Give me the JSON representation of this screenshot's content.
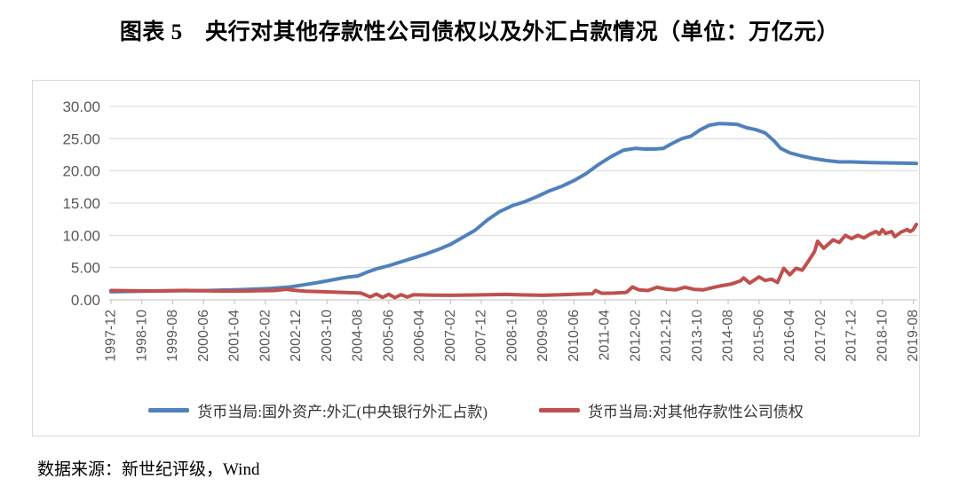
{
  "title": "图表 5　央行对其他存款性公司债权以及外汇占款情况（单位：万亿元）",
  "source_note": "数据来源：新世纪评级，Wind",
  "chart_data": {
    "type": "line",
    "title": "央行对其他存款性公司债权以及外汇占款情况",
    "unit": "万亿元",
    "ylim": [
      0,
      30
    ],
    "y_ticks": [
      "0.00",
      "5.00",
      "10.00",
      "15.00",
      "20.00",
      "25.00",
      "30.00"
    ],
    "y_tick_step": 5,
    "x_tick_labels": [
      "1997-12",
      "1998-10",
      "1999-08",
      "2000-06",
      "2001-04",
      "2002-02",
      "2002-12",
      "2003-10",
      "2004-08",
      "2005-06",
      "2006-04",
      "2007-02",
      "2007-12",
      "2008-10",
      "2009-08",
      "2010-06",
      "2011-04",
      "2012-02",
      "2012-12",
      "2013-10",
      "2014-08",
      "2015-06",
      "2016-04",
      "2017-02",
      "2017-12",
      "2018-10",
      "2019-08"
    ],
    "x_start": "1997-12",
    "x_end": "2019-09",
    "grid": "horizontal",
    "legend_position": "bottom",
    "colors": {
      "grid": "#d9d9d9",
      "axis": "#bfbfbf",
      "tick_label": "#595959",
      "panel_border": "#d9d9d9",
      "series_forex": "#4f81bd",
      "series_claims": "#c0504d"
    },
    "series": [
      {
        "name": "货币当局:国外资产:外汇(中央银行外汇占款)",
        "color": "#4f81bd",
        "points": [
          [
            "1997-12",
            1.25
          ],
          [
            "1998-04",
            1.3
          ],
          [
            "1998-10",
            1.35
          ],
          [
            "1999-04",
            1.38
          ],
          [
            "1999-10",
            1.4
          ],
          [
            "2000-04",
            1.42
          ],
          [
            "2000-10",
            1.48
          ],
          [
            "2001-04",
            1.55
          ],
          [
            "2001-10",
            1.65
          ],
          [
            "2002-04",
            1.78
          ],
          [
            "2002-10",
            2.0
          ],
          [
            "2003-02",
            2.3
          ],
          [
            "2003-06",
            2.6
          ],
          [
            "2003-10",
            2.95
          ],
          [
            "2004-02",
            3.3
          ],
          [
            "2004-05",
            3.55
          ],
          [
            "2004-08",
            3.7
          ],
          [
            "2004-11",
            4.3
          ],
          [
            "2005-02",
            4.8
          ],
          [
            "2005-06",
            5.3
          ],
          [
            "2005-10",
            5.9
          ],
          [
            "2006-02",
            6.5
          ],
          [
            "2006-06",
            7.1
          ],
          [
            "2006-10",
            7.8
          ],
          [
            "2007-02",
            8.6
          ],
          [
            "2007-06",
            9.7
          ],
          [
            "2007-10",
            10.8
          ],
          [
            "2008-02",
            12.4
          ],
          [
            "2008-06",
            13.7
          ],
          [
            "2008-10",
            14.6
          ],
          [
            "2009-02",
            15.2
          ],
          [
            "2009-06",
            16.0
          ],
          [
            "2009-10",
            16.9
          ],
          [
            "2010-02",
            17.6
          ],
          [
            "2010-06",
            18.5
          ],
          [
            "2010-10",
            19.6
          ],
          [
            "2011-02",
            21.0
          ],
          [
            "2011-06",
            22.2
          ],
          [
            "2011-10",
            23.2
          ],
          [
            "2012-02",
            23.5
          ],
          [
            "2012-05",
            23.4
          ],
          [
            "2012-08",
            23.4
          ],
          [
            "2012-11",
            23.5
          ],
          [
            "2013-02",
            24.3
          ],
          [
            "2013-05",
            25.0
          ],
          [
            "2013-08",
            25.4
          ],
          [
            "2013-11",
            26.4
          ],
          [
            "2014-02",
            27.1
          ],
          [
            "2014-05",
            27.35
          ],
          [
            "2014-08",
            27.3
          ],
          [
            "2014-11",
            27.2
          ],
          [
            "2015-02",
            26.7
          ],
          [
            "2015-05",
            26.4
          ],
          [
            "2015-08",
            25.9
          ],
          [
            "2015-11",
            24.6
          ],
          [
            "2016-01",
            23.5
          ],
          [
            "2016-04",
            22.8
          ],
          [
            "2016-08",
            22.3
          ],
          [
            "2016-12",
            21.9
          ],
          [
            "2017-04",
            21.6
          ],
          [
            "2017-08",
            21.4
          ],
          [
            "2017-12",
            21.4
          ],
          [
            "2018-06",
            21.3
          ],
          [
            "2018-12",
            21.25
          ],
          [
            "2019-05",
            21.2
          ],
          [
            "2019-09",
            21.15
          ]
        ]
      },
      {
        "name": "货币当局:对其他存款性公司债权",
        "color": "#c0504d",
        "points": [
          [
            "1997-12",
            1.44
          ],
          [
            "1998-06",
            1.4
          ],
          [
            "1998-12",
            1.37
          ],
          [
            "1999-06",
            1.42
          ],
          [
            "1999-12",
            1.46
          ],
          [
            "2000-06",
            1.4
          ],
          [
            "2000-12",
            1.36
          ],
          [
            "2001-06",
            1.36
          ],
          [
            "2001-12",
            1.4
          ],
          [
            "2002-05",
            1.45
          ],
          [
            "2002-09",
            1.65
          ],
          [
            "2002-11",
            1.5
          ],
          [
            "2003-03",
            1.35
          ],
          [
            "2003-09",
            1.25
          ],
          [
            "2004-03",
            1.15
          ],
          [
            "2004-09",
            1.05
          ],
          [
            "2004-12",
            0.45
          ],
          [
            "2005-02",
            0.9
          ],
          [
            "2005-04",
            0.38
          ],
          [
            "2005-06",
            0.85
          ],
          [
            "2005-08",
            0.35
          ],
          [
            "2005-10",
            0.8
          ],
          [
            "2005-12",
            0.42
          ],
          [
            "2006-02",
            0.78
          ],
          [
            "2006-08",
            0.72
          ],
          [
            "2007-02",
            0.7
          ],
          [
            "2007-08",
            0.74
          ],
          [
            "2008-02",
            0.8
          ],
          [
            "2008-08",
            0.84
          ],
          [
            "2009-02",
            0.76
          ],
          [
            "2009-08",
            0.7
          ],
          [
            "2010-02",
            0.8
          ],
          [
            "2010-08",
            0.9
          ],
          [
            "2010-12",
            0.95
          ],
          [
            "2011-01",
            1.45
          ],
          [
            "2011-03",
            1.02
          ],
          [
            "2011-07",
            1.05
          ],
          [
            "2011-11",
            1.15
          ],
          [
            "2012-01",
            2.0
          ],
          [
            "2012-03",
            1.55
          ],
          [
            "2012-06",
            1.45
          ],
          [
            "2012-09",
            1.95
          ],
          [
            "2012-12",
            1.65
          ],
          [
            "2013-03",
            1.55
          ],
          [
            "2013-06",
            1.95
          ],
          [
            "2013-09",
            1.62
          ],
          [
            "2013-12",
            1.55
          ],
          [
            "2014-03",
            1.9
          ],
          [
            "2014-06",
            2.2
          ],
          [
            "2014-09",
            2.45
          ],
          [
            "2014-12",
            2.95
          ],
          [
            "2015-01",
            3.4
          ],
          [
            "2015-03",
            2.6
          ],
          [
            "2015-06",
            3.55
          ],
          [
            "2015-08",
            3.0
          ],
          [
            "2015-10",
            3.2
          ],
          [
            "2015-12",
            2.7
          ],
          [
            "2016-02",
            4.9
          ],
          [
            "2016-04",
            3.9
          ],
          [
            "2016-06",
            4.9
          ],
          [
            "2016-08",
            4.6
          ],
          [
            "2016-10",
            6.0
          ],
          [
            "2016-12",
            7.5
          ],
          [
            "2017-01",
            9.1
          ],
          [
            "2017-03",
            8.0
          ],
          [
            "2017-06",
            9.3
          ],
          [
            "2017-08",
            8.9
          ],
          [
            "2017-10",
            10.0
          ],
          [
            "2017-12",
            9.5
          ],
          [
            "2018-02",
            10.0
          ],
          [
            "2018-04",
            9.6
          ],
          [
            "2018-06",
            10.2
          ],
          [
            "2018-08",
            10.6
          ],
          [
            "2018-09",
            10.2
          ],
          [
            "2018-10",
            10.9
          ],
          [
            "2018-11",
            10.3
          ],
          [
            "2019-01",
            10.6
          ],
          [
            "2019-02",
            9.8
          ],
          [
            "2019-04",
            10.5
          ],
          [
            "2019-06",
            10.9
          ],
          [
            "2019-07",
            10.6
          ],
          [
            "2019-08",
            10.9
          ],
          [
            "2019-09",
            11.7
          ]
        ]
      }
    ]
  }
}
